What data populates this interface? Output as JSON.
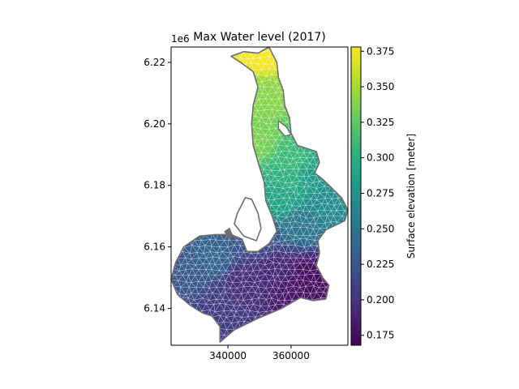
{
  "chart_data": {
    "type": "heatmap",
    "title": "Max Water level (2017)",
    "xlabel": "",
    "ylabel": "",
    "y_offset_label": "1e6",
    "xlim": [
      322000,
      378000
    ],
    "ylim": [
      6128000,
      6225000
    ],
    "x_ticks": [
      340000,
      360000
    ],
    "x_tick_labels": [
      "340000",
      "360000"
    ],
    "y_ticks": [
      6140000,
      6160000,
      6180000,
      6200000,
      6220000
    ],
    "y_tick_labels": [
      "6.14",
      "6.16",
      "6.18",
      "6.20",
      "6.22"
    ],
    "grid": false,
    "colorbar": {
      "label": "Surface elevation [meter]",
      "colormap": "viridis",
      "range": [
        0.168,
        0.378
      ],
      "ticks": [
        0.175,
        0.2,
        0.225,
        0.25,
        0.275,
        0.3,
        0.325,
        0.35,
        0.375
      ],
      "tick_labels": [
        "0.175",
        "0.200",
        "0.225",
        "0.250",
        "0.275",
        "0.300",
        "0.325",
        "0.350",
        "0.375"
      ]
    },
    "colormap_stops": [
      "#440154",
      "#482878",
      "#3e4989",
      "#31688e",
      "#26828e",
      "#1f9e89",
      "#35b779",
      "#6ece58",
      "#b5de2b",
      "#fde725"
    ],
    "outline_color": "#6e6e6e",
    "mesh_line_color": "#ffffff",
    "domain_outline": [
      [
        349500,
        6223000
      ],
      [
        353000,
        6225000
      ],
      [
        355500,
        6220000
      ],
      [
        356000,
        6215000
      ],
      [
        357500,
        6211000
      ],
      [
        358000,
        6206000
      ],
      [
        359500,
        6202000
      ],
      [
        360000,
        6197000
      ],
      [
        362000,
        6193000
      ],
      [
        365000,
        6192000
      ],
      [
        368000,
        6191000
      ],
      [
        369000,
        6187500
      ],
      [
        367500,
        6184000
      ],
      [
        370000,
        6182000
      ],
      [
        373000,
        6179000
      ],
      [
        376000,
        6176000
      ],
      [
        378000,
        6172000
      ],
      [
        377000,
        6168500
      ],
      [
        374000,
        6167000
      ],
      [
        371000,
        6165500
      ],
      [
        368500,
        6162000
      ],
      [
        369000,
        6158000
      ],
      [
        368000,
        6154000
      ],
      [
        370000,
        6150000
      ],
      [
        372000,
        6147500
      ],
      [
        371000,
        6143000
      ],
      [
        367000,
        6142500
      ],
      [
        363000,
        6143500
      ],
      [
        357000,
        6140000
      ],
      [
        349000,
        6136500
      ],
      [
        342000,
        6133000
      ],
      [
        337500,
        6129000
      ],
      [
        337500,
        6134000
      ],
      [
        335000,
        6137500
      ],
      [
        332000,
        6138500
      ],
      [
        328000,
        6141000
      ],
      [
        324000,
        6144500
      ],
      [
        322000,
        6149500
      ],
      [
        323500,
        6155000
      ],
      [
        326000,
        6160000
      ],
      [
        331000,
        6163500
      ],
      [
        336000,
        6164000
      ],
      [
        341000,
        6164000
      ],
      [
        344500,
        6162500
      ],
      [
        346000,
        6158500
      ],
      [
        349500,
        6158500
      ],
      [
        353000,
        6161000
      ],
      [
        355500,
        6165000
      ],
      [
        354000,
        6170000
      ],
      [
        352000,
        6175000
      ],
      [
        351500,
        6181000
      ],
      [
        350000,
        6186000
      ],
      [
        348000,
        6193000
      ],
      [
        347500,
        6200000
      ],
      [
        348000,
        6206000
      ],
      [
        349500,
        6212000
      ],
      [
        348000,
        6217000
      ],
      [
        344000,
        6220000
      ],
      [
        341000,
        6222000
      ],
      [
        345000,
        6223500
      ]
    ],
    "island_outline": [
      [
        345500,
        6176000
      ],
      [
        343000,
        6171000
      ],
      [
        342000,
        6167500
      ],
      [
        345000,
        6163500
      ],
      [
        349000,
        6162000
      ],
      [
        350500,
        6166000
      ],
      [
        349500,
        6171000
      ],
      [
        347500,
        6175500
      ]
    ],
    "lake_outline": [
      [
        356000,
        6201000
      ],
      [
        358500,
        6199000
      ],
      [
        360000,
        6196500
      ],
      [
        358000,
        6196000
      ],
      [
        356000,
        6198500
      ]
    ],
    "islet_outline": [
      [
        341500,
        6163500
      ],
      [
        340500,
        6166000
      ],
      [
        339000,
        6165000
      ],
      [
        340000,
        6163000
      ]
    ],
    "field_points": [
      [
        351000,
        6222000,
        0.375
      ],
      [
        351000,
        6210000,
        0.34
      ],
      [
        349500,
        6195000,
        0.335
      ],
      [
        360000,
        6188000,
        0.31
      ],
      [
        366000,
        6182000,
        0.285
      ],
      [
        360000,
        6182000,
        0.3
      ],
      [
        358000,
        6175000,
        0.29
      ],
      [
        370000,
        6176000,
        0.27
      ],
      [
        363000,
        6168000,
        0.25
      ],
      [
        350000,
        6163000,
        0.22
      ],
      [
        335000,
        6156000,
        0.235
      ],
      [
        328000,
        6150000,
        0.225
      ],
      [
        345000,
        6148000,
        0.195
      ],
      [
        355000,
        6152000,
        0.19
      ],
      [
        366000,
        6150000,
        0.175
      ],
      [
        360000,
        6145000,
        0.18
      ],
      [
        340000,
        6136000,
        0.205
      ],
      [
        337000,
        6142000,
        0.205
      ]
    ]
  }
}
